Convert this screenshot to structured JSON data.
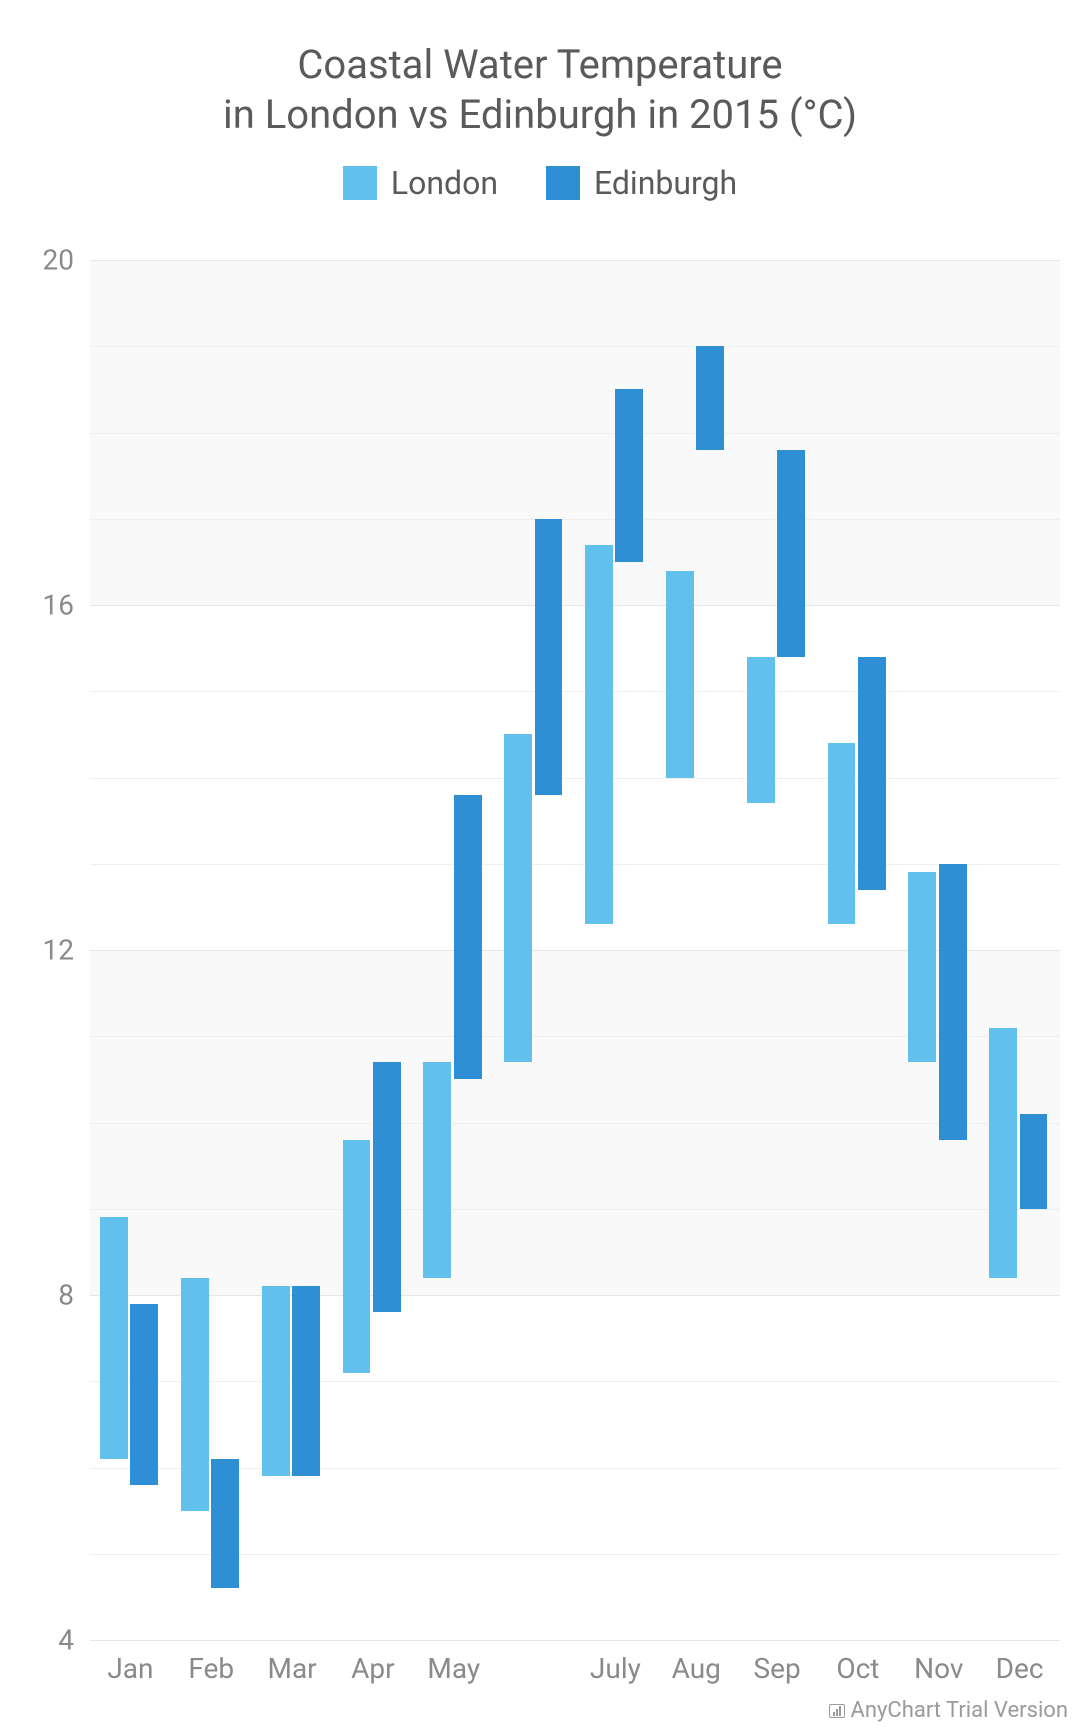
{
  "title_line1": "Coastal Water Temperature",
  "title_line2": "in London vs Edinburgh in 2015 (°C)",
  "title_fontsize": 40,
  "legend": {
    "fontsize": 32,
    "items": [
      {
        "label": "London",
        "color": "#61c0ec"
      },
      {
        "label": "Edinburgh",
        "color": "#2e8fd4"
      }
    ]
  },
  "chart": {
    "type": "range-bar",
    "ylim": [
      4,
      20
    ],
    "ytick_step": 4,
    "yticks": [
      4,
      8,
      12,
      16,
      20
    ],
    "axis_fontsize": 28,
    "grid_color": "#e6e6e6",
    "band_color": "#f9f9f9",
    "background_color": "#ffffff",
    "categories": [
      "Jan",
      "Feb",
      "Mar",
      "Apr",
      "May",
      "",
      "July",
      "Aug",
      "Sep",
      "Oct",
      "Nov",
      "Dec"
    ],
    "xtick_show": [
      true,
      true,
      true,
      true,
      true,
      false,
      true,
      true,
      true,
      true,
      true,
      true
    ],
    "bar_group_gap": 0.25,
    "bar_width": 0.35,
    "series": [
      {
        "name": "London",
        "color": "#61c0ec",
        "data": [
          {
            "low": 6.1,
            "high": 8.9
          },
          {
            "low": 5.5,
            "high": 8.2
          },
          {
            "low": 5.9,
            "high": 8.1
          },
          {
            "low": 7.1,
            "high": 9.8
          },
          {
            "low": 8.2,
            "high": 10.7
          },
          {
            "low": 10.7,
            "high": 14.5
          },
          {
            "low": 12.3,
            "high": 16.7
          },
          {
            "low": 14.0,
            "high": 16.4
          },
          {
            "low": 13.7,
            "high": 15.4
          },
          {
            "low": 12.3,
            "high": 14.4
          },
          {
            "low": 10.7,
            "high": 12.9
          },
          {
            "low": 8.2,
            "high": 11.1
          }
        ]
      },
      {
        "name": "Edinburgh",
        "color": "#2e8fd4",
        "data": [
          {
            "low": 5.8,
            "high": 7.9
          },
          {
            "low": 4.6,
            "high": 6.1
          },
          {
            "low": 5.9,
            "high": 8.1
          },
          {
            "low": 7.8,
            "high": 10.7
          },
          {
            "low": 10.5,
            "high": 13.8
          },
          {
            "low": 13.8,
            "high": 17.0
          },
          {
            "low": 16.5,
            "high": 18.5
          },
          {
            "low": 17.8,
            "high": 19.0
          },
          {
            "low": 15.4,
            "high": 17.8
          },
          {
            "low": 12.7,
            "high": 15.4
          },
          {
            "low": 9.8,
            "high": 13.0
          },
          {
            "low": 9.0,
            "high": 10.1
          }
        ]
      }
    ]
  },
  "credits": "AnyChart Trial Version",
  "credits_fontsize": 22
}
